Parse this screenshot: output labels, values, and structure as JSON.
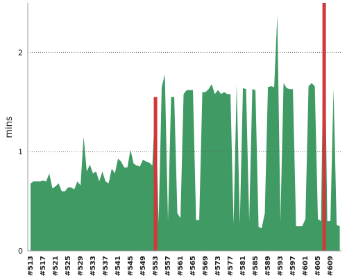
{
  "chart_data": {
    "type": "area",
    "y_label": "mins",
    "categories": [
      "#513",
      null,
      null,
      null,
      "#517",
      null,
      null,
      null,
      "#521",
      null,
      null,
      null,
      "#525",
      null,
      null,
      null,
      "#529",
      null,
      null,
      null,
      "#533",
      null,
      null,
      null,
      "#537",
      null,
      null,
      null,
      "#541",
      null,
      null,
      null,
      "#545",
      null,
      null,
      null,
      "#549",
      null,
      null,
      null,
      "#553",
      null,
      null,
      null,
      "#557",
      null,
      null,
      null,
      "#561",
      null,
      null,
      null,
      "#565",
      null,
      null,
      null,
      "#569",
      null,
      null,
      null,
      "#573",
      null,
      null,
      null,
      "#577",
      null,
      null,
      null,
      "#581",
      null,
      null,
      null,
      "#585",
      null,
      null,
      null,
      "#589",
      null,
      null,
      null,
      "#593",
      null,
      null,
      null,
      "#597",
      null,
      null,
      null,
      "#601",
      null,
      null,
      null,
      "#605",
      null,
      null,
      null,
      "#609",
      null,
      null,
      null
    ],
    "series": [
      {
        "color": "#3f9a64",
        "values": [
          0.68,
          0.7,
          0.7,
          0.7,
          0.71,
          0.7,
          0.78,
          0.63,
          0.65,
          0.68,
          0.6,
          0.6,
          0.64,
          0.64,
          0.62,
          0.7,
          0.66,
          1.15,
          0.8,
          0.87,
          0.78,
          0.8,
          0.7,
          0.8,
          0.7,
          0.68,
          0.83,
          0.78,
          0.93,
          0.9,
          0.84,
          0.84,
          1.02,
          0.88,
          0.86,
          0.85,
          0.92,
          0.9,
          0.89,
          0.86,
          1.55,
          0.28,
          1.65,
          1.78,
          0.3,
          1.55,
          1.55,
          0.38,
          0.33,
          1.58,
          1.62,
          1.62,
          1.62,
          0.31,
          0.31,
          1.6,
          1.6,
          1.63,
          1.68,
          1.58,
          1.62,
          1.58,
          1.6,
          1.58,
          1.58,
          0.27,
          1.68,
          0.27,
          1.64,
          1.63,
          0.3,
          1.63,
          1.62,
          0.24,
          0.23,
          0.38,
          1.65,
          1.66,
          1.65,
          2.38,
          0.3,
          1.69,
          1.64,
          1.63,
          1.63,
          0.25,
          0.25,
          0.25,
          0.32,
          1.66,
          1.69,
          1.66,
          0.32,
          0.3,
          2.6,
          0.3,
          0.3,
          1.63,
          0.26,
          0.25
        ]
      },
      {
        "color": "#d2383a",
        "values": [
          null,
          null,
          null,
          null,
          null,
          null,
          null,
          null,
          null,
          null,
          null,
          null,
          null,
          null,
          null,
          null,
          null,
          null,
          null,
          null,
          null,
          null,
          null,
          null,
          null,
          null,
          null,
          null,
          null,
          null,
          null,
          null,
          null,
          null,
          null,
          null,
          null,
          null,
          null,
          null,
          1.55,
          null,
          null,
          null,
          null,
          null,
          null,
          null,
          null,
          null,
          null,
          null,
          null,
          null,
          null,
          null,
          null,
          null,
          null,
          null,
          null,
          null,
          null,
          null,
          null,
          null,
          null,
          null,
          null,
          null,
          null,
          null,
          null,
          null,
          null,
          null,
          null,
          null,
          null,
          null,
          null,
          null,
          null,
          null,
          null,
          null,
          null,
          null,
          null,
          null,
          null,
          null,
          null,
          null,
          2.6,
          null,
          null,
          null,
          null,
          null
        ]
      }
    ],
    "ylim": [
      0,
      2.5
    ],
    "yticks": [
      0,
      1,
      2
    ],
    "grid": true
  }
}
